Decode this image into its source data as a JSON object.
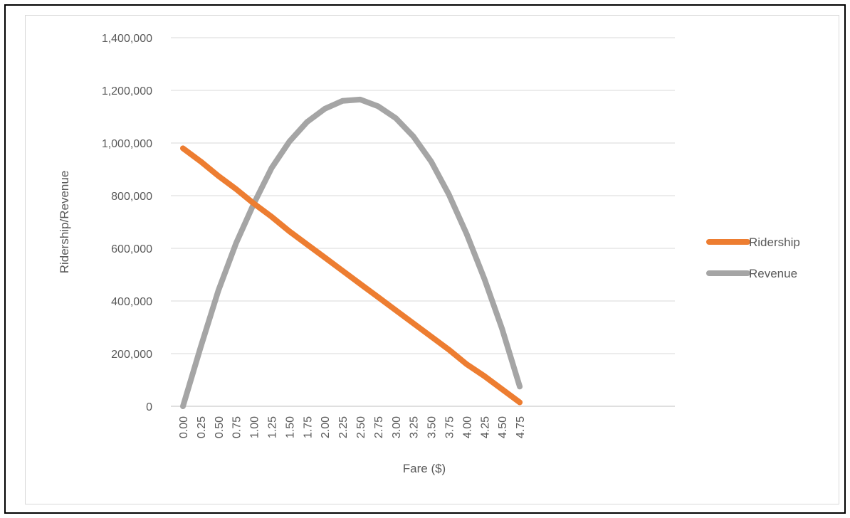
{
  "chart_data": {
    "type": "line",
    "title": "",
    "xlabel": "Fare ($)",
    "ylabel": "Ridership/Revenue",
    "categories": [
      "0.00",
      "0.25",
      "0.50",
      "0.75",
      "1.00",
      "1.25",
      "1.50",
      "1.75",
      "2.00",
      "2.25",
      "2.50",
      "2.75",
      "3.00",
      "3.25",
      "3.50",
      "3.75",
      "4.00",
      "4.25",
      "4.50",
      "4.75"
    ],
    "ylim": [
      0,
      1400000
    ],
    "yticks": [
      0,
      200000,
      400000,
      600000,
      800000,
      1000000,
      1200000,
      1400000
    ],
    "ytick_labels": [
      "0",
      "200,000",
      "400,000",
      "600,000",
      "800,000",
      "1,000,000",
      "1,200,000",
      "1,400,000"
    ],
    "grid": true,
    "legend": "right",
    "series": [
      {
        "name": "Ridership",
        "color": "#ED7D31",
        "values": [
          980000,
          930000,
          875000,
          825000,
          770000,
          720000,
          665000,
          615000,
          565000,
          515000,
          465000,
          415000,
          365000,
          315000,
          265000,
          215000,
          160000,
          115000,
          65000,
          15000
        ]
      },
      {
        "name": "Revenue",
        "color": "#A5A5A5",
        "values": [
          0,
          225000,
          440000,
          620000,
          770000,
          905000,
          1005000,
          1080000,
          1130000,
          1160000,
          1165000,
          1140000,
          1095000,
          1025000,
          930000,
          805000,
          655000,
          485000,
          295000,
          75000
        ]
      }
    ]
  }
}
